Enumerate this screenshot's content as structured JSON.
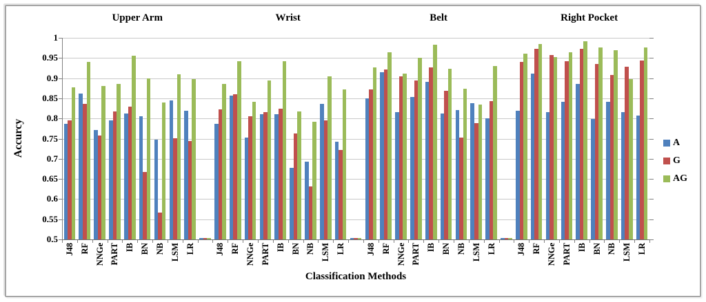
{
  "chart_data": {
    "type": "bar",
    "title": "",
    "ylabel": "Accurcy",
    "xlabel": "Classification Methods",
    "ylim": [
      0.5,
      1.0
    ],
    "ytick_labels": [
      "1",
      "0.95",
      "0.9",
      "0.85",
      "0.8",
      "0.75",
      "0.7",
      "0.65",
      "0.6",
      "0.55",
      "0.5"
    ],
    "grid": true,
    "legend_position": "right",
    "categories": [
      "J48",
      "RF",
      "NNGe",
      "PART",
      "IB",
      "BN",
      "NB",
      "LSM",
      "LR"
    ],
    "series_names": [
      "A",
      "G",
      "AG"
    ],
    "gap_sliver_value": 0.503,
    "groups": [
      {
        "name": "Upper Arm",
        "series": [
          {
            "name": "A",
            "values": [
              0.787,
              0.862,
              0.771,
              0.795,
              0.812,
              0.806,
              0.748,
              0.845,
              0.819
            ]
          },
          {
            "name": "G",
            "values": [
              0.795,
              0.836,
              0.757,
              0.817,
              0.829,
              0.668,
              0.567,
              0.751,
              0.744
            ]
          },
          {
            "name": "AG",
            "values": [
              0.877,
              0.941,
              0.881,
              0.886,
              0.955,
              0.899,
              0.84,
              0.91,
              0.898
            ]
          }
        ]
      },
      {
        "name": "Wrist",
        "series": [
          {
            "name": "A",
            "values": [
              0.787,
              0.857,
              0.753,
              0.81,
              0.81,
              0.678,
              0.693,
              0.837,
              0.743
            ]
          },
          {
            "name": "G",
            "values": [
              0.823,
              0.86,
              0.805,
              0.815,
              0.825,
              0.763,
              0.632,
              0.795,
              0.721
            ]
          },
          {
            "name": "AG",
            "values": [
              0.885,
              0.942,
              0.842,
              0.895,
              0.942,
              0.818,
              0.792,
              0.904,
              0.872
            ]
          }
        ]
      },
      {
        "name": "Belt",
        "series": [
          {
            "name": "A",
            "values": [
              0.849,
              0.914,
              0.815,
              0.854,
              0.891,
              0.813,
              0.821,
              0.838,
              0.801
            ]
          },
          {
            "name": "G",
            "values": [
              0.872,
              0.922,
              0.904,
              0.895,
              0.927,
              0.868,
              0.752,
              0.788,
              0.843
            ]
          },
          {
            "name": "AG",
            "values": [
              0.926,
              0.965,
              0.911,
              0.95,
              0.983,
              0.924,
              0.873,
              0.835,
              0.93
            ]
          }
        ]
      },
      {
        "name": "Right Pocket",
        "series": [
          {
            "name": "A",
            "values": [
              0.819,
              0.911,
              0.816,
              0.842,
              0.885,
              0.798,
              0.842,
              0.815,
              0.807
            ]
          },
          {
            "name": "G",
            "values": [
              0.94,
              0.972,
              0.958,
              0.942,
              0.973,
              0.936,
              0.907,
              0.929,
              0.943
            ]
          },
          {
            "name": "AG",
            "values": [
              0.96,
              0.985,
              0.952,
              0.965,
              0.991,
              0.976,
              0.969,
              0.897,
              0.976
            ]
          }
        ]
      }
    ],
    "legend": [
      {
        "label": "A",
        "color": "#4F81BD"
      },
      {
        "label": "G",
        "color": "#C0504D"
      },
      {
        "label": "AG",
        "color": "#9BBB59"
      }
    ]
  }
}
